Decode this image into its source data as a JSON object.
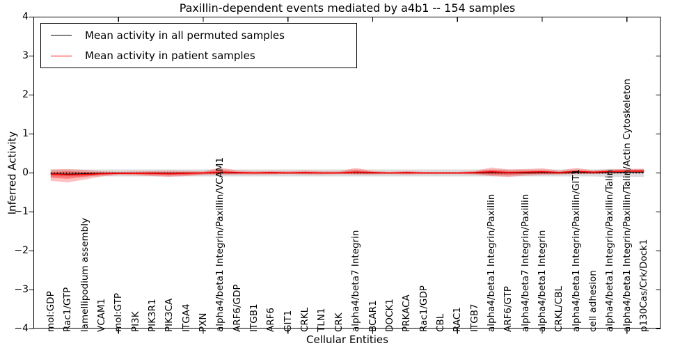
{
  "chart_data": {
    "type": "line",
    "title": "Paxillin-dependent events mediated by a4b1 -- 154 samples",
    "xlabel": "Cellular Entities",
    "ylabel": "Inferred Activity",
    "ylim": [
      -4,
      4
    ],
    "grid": false,
    "legend_position": "upper left",
    "y_ticks": [
      {
        "value": 4,
        "label": "4"
      },
      {
        "value": 3,
        "label": "3"
      },
      {
        "value": 2,
        "label": "2"
      },
      {
        "value": 1,
        "label": "1"
      },
      {
        "value": 0,
        "label": "0"
      },
      {
        "value": -1,
        "label": "−1"
      },
      {
        "value": -2,
        "label": "−2"
      },
      {
        "value": -3,
        "label": "−3"
      },
      {
        "value": -4,
        "label": "−4"
      }
    ],
    "x_numeric_ticks": [
      5,
      10,
      15,
      20,
      25,
      30,
      35
    ],
    "categories": [
      "mol:GDP",
      "Rac1/GTP",
      "lamellipodium assembly",
      "VCAM1",
      "mol:GTP",
      "PI3K",
      "PIK3R1",
      "PIK3CA",
      "ITGA4",
      "PXN",
      "alpha4/beta1 Integrin/Paxillin/VCAM1",
      "ARF6/GDP",
      "ITGB1",
      "ARF6",
      "GIT1",
      "CRKL",
      "TLN1",
      "CRK",
      "alpha4/beta7 Integrin",
      "BCAR1",
      "DOCK1",
      "PRKACA",
      "Rac1/GDP",
      "CBL",
      "RAC1",
      "ITGB7",
      "alpha4/beta1 Integrin/Paxillin",
      "ARF6/GTP",
      "alpha4/beta7 Integrin/Paxillin",
      "alpha4/beta1 Integrin",
      "CRKL/CBL",
      "alpha4/beta1 Integrin/Paxillin/GIT1",
      "cell adhesion",
      "alpha4/beta1 Integrin/Paxillin/Talin",
      "alpha4/beta1 Integrin/Paxillin/Talin/Actin Cytoskeleton",
      "p130Cas/Crk/Dock1"
    ],
    "zero_line": 0,
    "series": [
      {
        "name": "Mean activity in all permuted samples",
        "color": "#000000",
        "values": [
          -0.02,
          -0.03,
          -0.02,
          -0.01,
          0,
          -0.01,
          0,
          -0.01,
          0,
          0,
          0.01,
          0,
          0,
          0,
          0,
          0,
          0,
          0,
          0.01,
          0,
          0,
          0,
          0,
          0,
          0,
          0,
          0.01,
          0,
          0,
          0.01,
          0,
          0.01,
          0.01,
          0.01,
          0.02,
          0.02
        ]
      },
      {
        "name": "Mean activity in patient samples",
        "color": "#ff0000",
        "values": [
          -0.03,
          -0.05,
          -0.04,
          -0.02,
          -0.01,
          -0.01,
          -0.01,
          -0.02,
          -0.01,
          0,
          0.02,
          0.01,
          0,
          0.01,
          0,
          0.01,
          0,
          0,
          0.02,
          0.01,
          0,
          0.01,
          0,
          0,
          0,
          0.01,
          0.03,
          0.01,
          0.02,
          0.03,
          0.01,
          0.04,
          0.02,
          0.04,
          0.05,
          0.05
        ]
      }
    ],
    "bands": [
      {
        "name": "permuted-samples-band",
        "color": "rgba(128,128,128,0.28)",
        "upper": [
          0.09,
          0.09,
          0.09,
          0.09,
          0.09,
          0.09,
          0.09,
          0.09,
          0.09,
          0.09,
          0.09,
          0.09,
          0.09,
          0.09,
          0.09,
          0.09,
          0.09,
          0.09,
          0.09,
          0.09,
          0.09,
          0.09,
          0.09,
          0.09,
          0.09,
          0.09,
          0.09,
          0.09,
          0.09,
          0.09,
          0.09,
          0.09,
          0.09,
          0.1,
          0.1,
          0.1
        ],
        "lower": [
          -0.09,
          -0.09,
          -0.09,
          -0.09,
          -0.09,
          -0.09,
          -0.09,
          -0.09,
          -0.09,
          -0.09,
          -0.09,
          -0.09,
          -0.09,
          -0.09,
          -0.09,
          -0.09,
          -0.09,
          -0.09,
          -0.09,
          -0.09,
          -0.09,
          -0.09,
          -0.09,
          -0.09,
          -0.09,
          -0.09,
          -0.09,
          -0.09,
          -0.09,
          -0.09,
          -0.09,
          -0.09,
          -0.09,
          -0.1,
          -0.1,
          -0.1
        ]
      },
      {
        "name": "patient-band-outer",
        "color": "rgba(255,0,0,0.25)",
        "upper": [
          0.09,
          0.1,
          0.08,
          0.04,
          0.03,
          0.04,
          0.05,
          0.06,
          0.05,
          0.04,
          0.14,
          0.06,
          0.04,
          0.05,
          0.04,
          0.06,
          0.04,
          0.04,
          0.13,
          0.05,
          0.03,
          0.05,
          0.03,
          0.03,
          0.03,
          0.05,
          0.14,
          0.09,
          0.1,
          0.12,
          0.06,
          0.13,
          0.07,
          0.09,
          0.1,
          0.11
        ],
        "lower": [
          -0.2,
          -0.24,
          -0.17,
          -0.09,
          -0.05,
          -0.06,
          -0.08,
          -0.1,
          -0.08,
          -0.05,
          -0.05,
          -0.04,
          -0.04,
          -0.04,
          -0.03,
          -0.04,
          -0.04,
          -0.03,
          -0.04,
          -0.04,
          -0.03,
          -0.04,
          -0.03,
          -0.03,
          -0.03,
          -0.04,
          -0.08,
          -0.1,
          -0.07,
          -0.05,
          -0.04,
          -0.03,
          -0.03,
          -0.02,
          -0.01,
          -0.01
        ]
      },
      {
        "name": "patient-band-inner",
        "color": "rgba(255,0,0,0.35)",
        "upper": [
          0.03,
          0.04,
          0.03,
          0.01,
          0.01,
          0.01,
          0.02,
          0.02,
          0.02,
          0.02,
          0.07,
          0.03,
          0.02,
          0.03,
          0.02,
          0.03,
          0.02,
          0.02,
          0.07,
          0.03,
          0.01,
          0.03,
          0.01,
          0.01,
          0.01,
          0.03,
          0.08,
          0.05,
          0.05,
          0.06,
          0.03,
          0.07,
          0.04,
          0.06,
          0.07,
          0.08
        ],
        "lower": [
          -0.12,
          -0.15,
          -0.1,
          -0.05,
          -0.03,
          -0.03,
          -0.05,
          -0.06,
          -0.05,
          -0.03,
          -0.02,
          -0.02,
          -0.02,
          -0.02,
          -0.02,
          -0.02,
          -0.02,
          -0.02,
          -0.02,
          -0.02,
          -0.02,
          -0.02,
          -0.02,
          -0.02,
          -0.02,
          -0.02,
          -0.04,
          -0.05,
          -0.03,
          -0.02,
          -0.02,
          -0.01,
          -0.01,
          0.0,
          0.01,
          0.01
        ]
      }
    ]
  }
}
